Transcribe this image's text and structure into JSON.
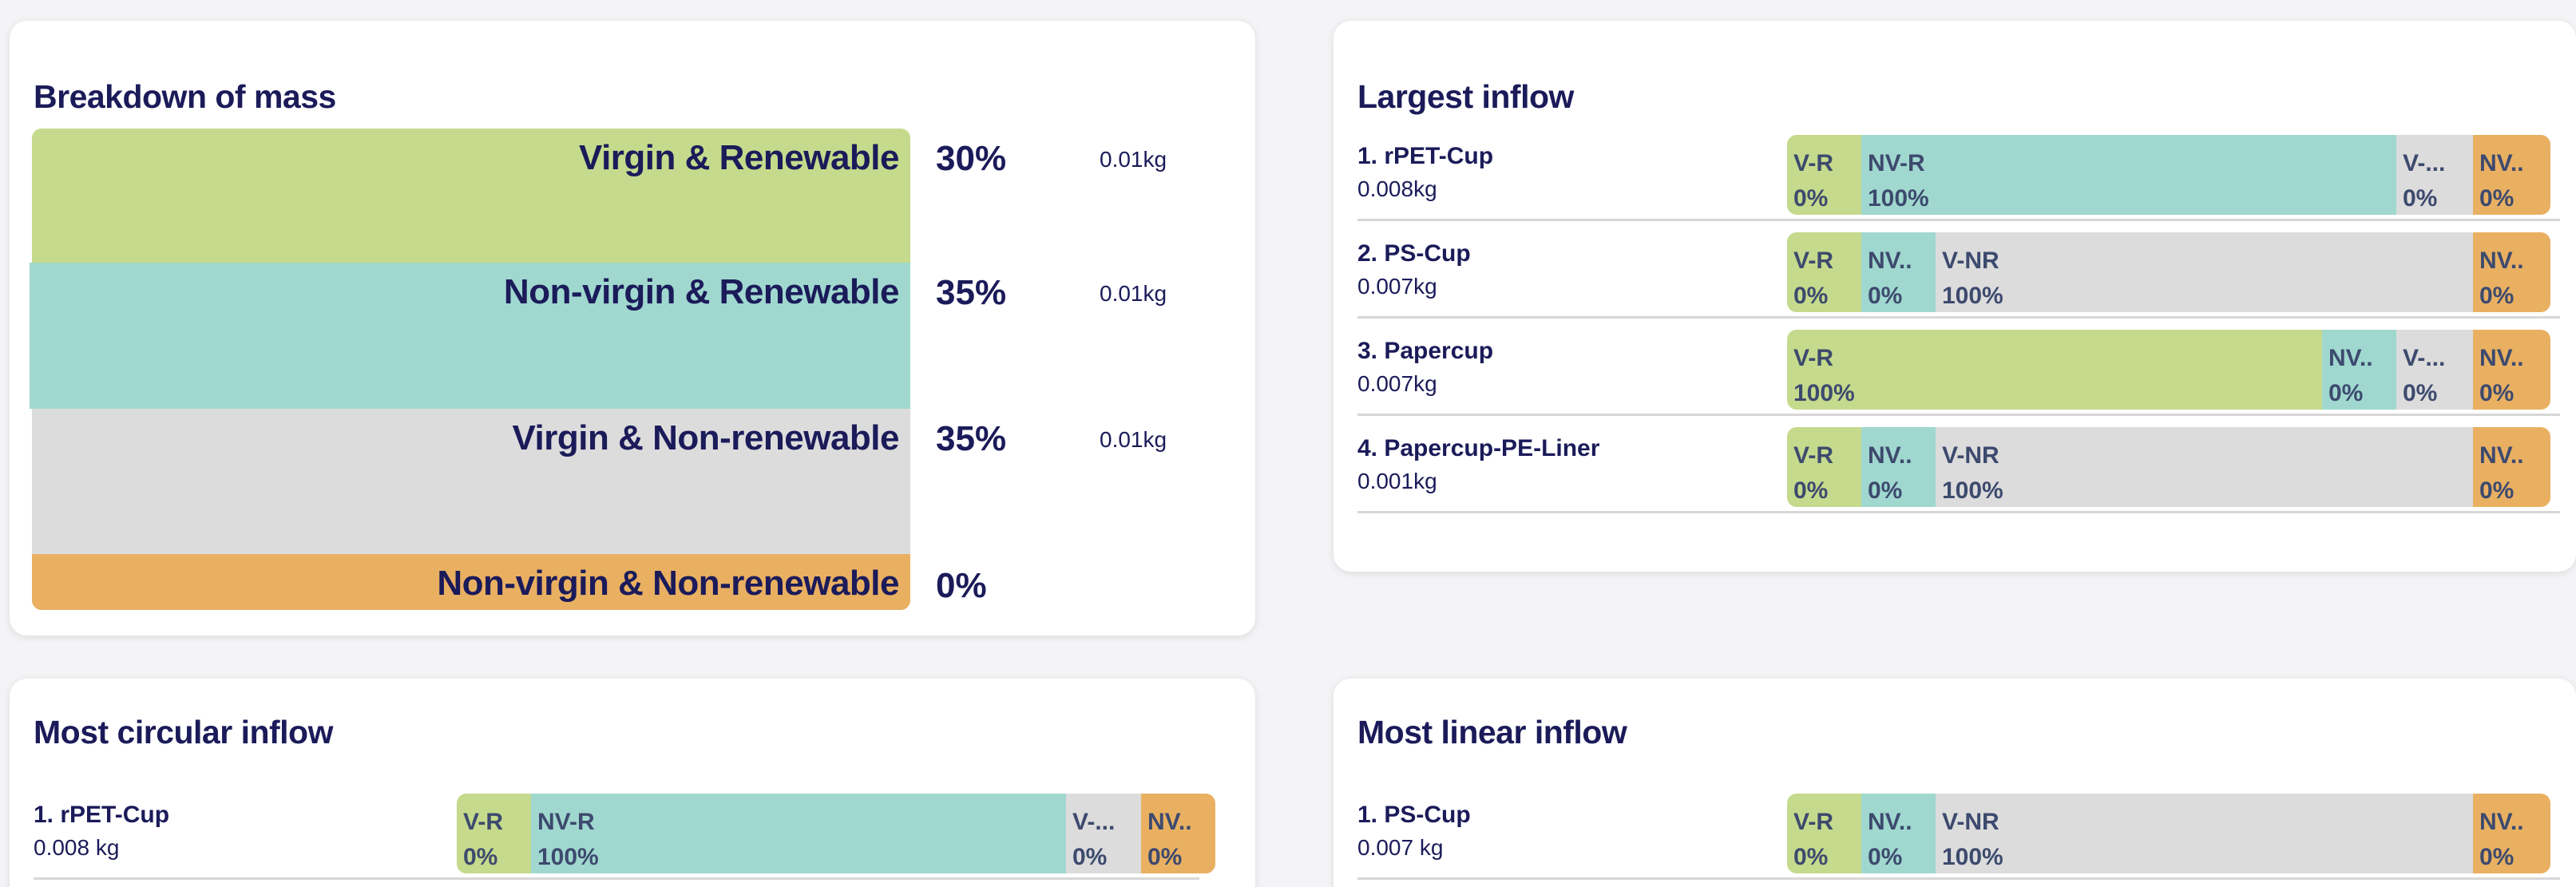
{
  "colors": {
    "virgin_renewable": "#c5da8c",
    "nonvirgin_renewable": "#a0d8cf",
    "virgin_nonrenewable": "#dcdcdc",
    "nonvirgin_nonrenewable": "#e9b062",
    "text": "#1b1b5a"
  },
  "breakdown": {
    "title": "Breakdown of mass",
    "rows": [
      {
        "label": "Virgin & Renewable",
        "pct": "30%",
        "kg": "0.01kg"
      },
      {
        "label": "Non-virgin & Renewable",
        "pct": "35%",
        "kg": "0.01kg"
      },
      {
        "label": "Virgin & Non-renewable",
        "pct": "35%",
        "kg": "0.01kg"
      },
      {
        "label": "Non-virgin & Non-renewable",
        "pct": "0%",
        "kg": ""
      }
    ]
  },
  "largest": {
    "title": "Largest inflow",
    "rows": [
      {
        "name": "1. rPET-Cup",
        "kg": "0.008kg",
        "segs": [
          {
            "lab": "V-R",
            "val": "0%"
          },
          {
            "lab": "NV-R",
            "val": "100%"
          },
          {
            "lab": "V-...",
            "val": "0%"
          },
          {
            "lab": "NV..",
            "val": "0%"
          }
        ]
      },
      {
        "name": "2. PS-Cup",
        "kg": "0.007kg",
        "segs": [
          {
            "lab": "V-R",
            "val": "0%"
          },
          {
            "lab": "NV..",
            "val": "0%"
          },
          {
            "lab": "V-NR",
            "val": "100%"
          },
          {
            "lab": "NV..",
            "val": "0%"
          }
        ]
      },
      {
        "name": "3. Papercup",
        "kg": "0.007kg",
        "segs": [
          {
            "lab": "V-R",
            "val": "100%"
          },
          {
            "lab": "NV..",
            "val": "0%"
          },
          {
            "lab": "V-...",
            "val": "0%"
          },
          {
            "lab": "NV..",
            "val": "0%"
          }
        ]
      },
      {
        "name": "4. Papercup-PE-Liner",
        "kg": "0.001kg",
        "segs": [
          {
            "lab": "V-R",
            "val": "0%"
          },
          {
            "lab": "NV..",
            "val": "0%"
          },
          {
            "lab": "V-NR",
            "val": "100%"
          },
          {
            "lab": "NV..",
            "val": "0%"
          }
        ]
      }
    ]
  },
  "circular": {
    "title": "Most circular inflow",
    "rows": [
      {
        "name": "1. rPET-Cup",
        "kg": "0.008 kg",
        "segs": [
          {
            "lab": "V-R",
            "val": "0%"
          },
          {
            "lab": "NV-R",
            "val": "100%"
          },
          {
            "lab": "V-...",
            "val": "0%"
          },
          {
            "lab": "NV..",
            "val": "0%"
          }
        ]
      }
    ]
  },
  "linear": {
    "title": "Most linear inflow",
    "rows": [
      {
        "name": "1. PS-Cup",
        "kg": "0.007 kg",
        "segs": [
          {
            "lab": "V-R",
            "val": "0%"
          },
          {
            "lab": "NV..",
            "val": "0%"
          },
          {
            "lab": "V-NR",
            "val": "100%"
          },
          {
            "lab": "NV..",
            "val": "0%"
          }
        ]
      }
    ]
  }
}
